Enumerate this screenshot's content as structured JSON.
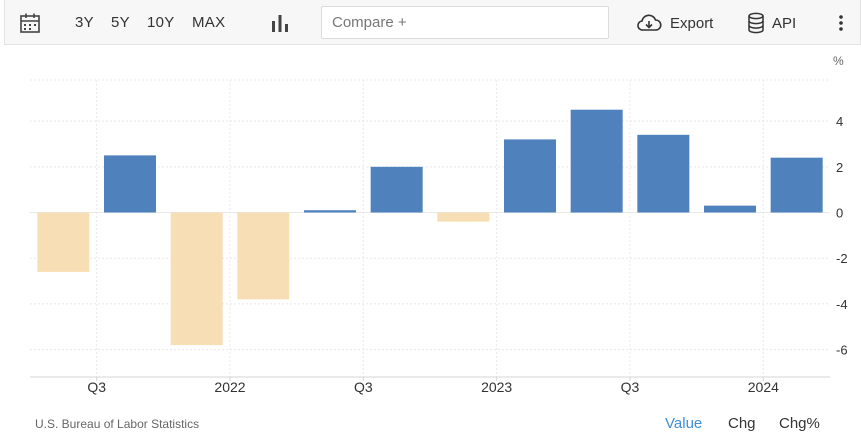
{
  "toolbar": {
    "calendar_icon": "calendar-icon",
    "ranges": [
      "3Y",
      "5Y",
      "10Y",
      "MAX"
    ],
    "chart_type_icon": "bar-chart-icon",
    "compare_placeholder": "Compare +",
    "export_label": "Export",
    "export_icon": "cloud-download-icon",
    "api_label": "API",
    "api_icon": "database-icon",
    "more_icon": "more-vertical-icon"
  },
  "footer": {
    "source": "U.S. Bureau of Labor Statistics",
    "modes": [
      "Value",
      "Chg",
      "Chg%"
    ],
    "active_mode": "Value"
  },
  "chart_data": {
    "type": "bar",
    "unit": "%",
    "x_tick_labels": [
      "Q3",
      "2022",
      "Q3",
      "2023",
      "Q3",
      "2024"
    ],
    "y_ticks": [
      -6,
      -4,
      -2,
      0,
      2,
      4
    ],
    "ylim": [
      -7.2,
      5.8
    ],
    "values": [
      -2.6,
      2.5,
      -5.8,
      -3.8,
      0.1,
      2.0,
      -0.4,
      3.2,
      4.5,
      3.4,
      0.3,
      2.4
    ],
    "grid": true,
    "colors": {
      "positive": "#4f81bd",
      "negative": "#f7deb5",
      "grid": "#e8e8e8",
      "axis": "#d6d6d6",
      "active_mode": "#3d8fd6"
    }
  }
}
